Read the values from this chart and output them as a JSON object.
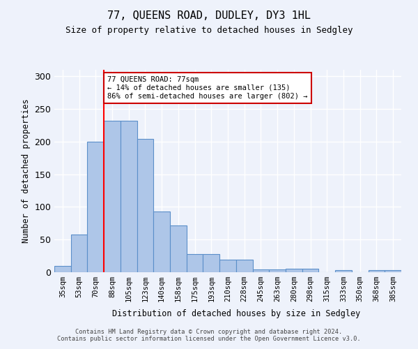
{
  "title": "77, QUEENS ROAD, DUDLEY, DY3 1HL",
  "subtitle": "Size of property relative to detached houses in Sedgley",
  "xlabel": "Distribution of detached houses by size in Sedgley",
  "ylabel": "Number of detached properties",
  "categories": [
    "35sqm",
    "53sqm",
    "70sqm",
    "88sqm",
    "105sqm",
    "123sqm",
    "140sqm",
    "158sqm",
    "175sqm",
    "193sqm",
    "210sqm",
    "228sqm",
    "245sqm",
    "263sqm",
    "280sqm",
    "298sqm",
    "315sqm",
    "333sqm",
    "350sqm",
    "368sqm",
    "385sqm"
  ],
  "values": [
    10,
    58,
    200,
    232,
    232,
    204,
    93,
    72,
    28,
    28,
    19,
    19,
    4,
    4,
    5,
    5,
    0,
    3,
    0,
    3,
    3
  ],
  "bar_color": "#aec6e8",
  "bar_edge_color": "#5b8fc9",
  "background_color": "#eef2fb",
  "grid_color": "#ffffff",
  "redline_x": 2.5,
  "annotation_text": "77 QUEENS ROAD: 77sqm\n← 14% of detached houses are smaller (135)\n86% of semi-detached houses are larger (802) →",
  "annotation_box_color": "#ffffff",
  "annotation_box_edge": "#cc0000",
  "ylim": [
    0,
    310
  ],
  "yticks": [
    0,
    50,
    100,
    150,
    200,
    250,
    300
  ],
  "footer": "Contains HM Land Registry data © Crown copyright and database right 2024.\nContains public sector information licensed under the Open Government Licence v3.0."
}
